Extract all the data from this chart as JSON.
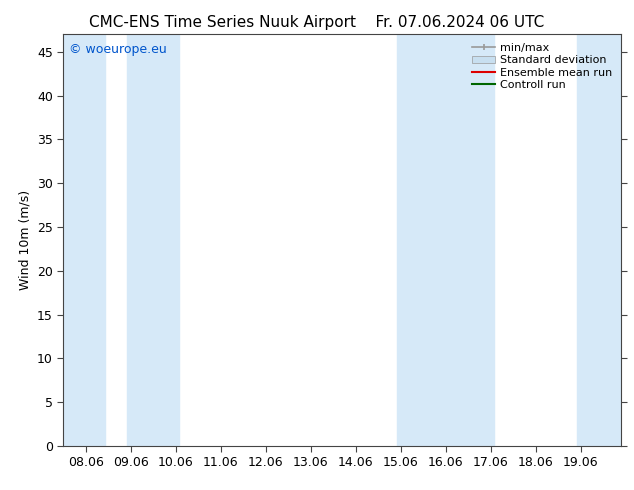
{
  "title_left": "CMC-ENS Time Series Nuuk Airport",
  "title_right": "Fr. 07.06.2024 06 UTC",
  "ylabel": "Wind 10m (m/s)",
  "watermark": "© woeurope.eu",
  "ylim": [
    0,
    47
  ],
  "yticks": [
    0,
    5,
    10,
    15,
    20,
    25,
    30,
    35,
    40,
    45
  ],
  "xtick_labels": [
    "08.06",
    "09.06",
    "10.06",
    "11.06",
    "12.06",
    "13.06",
    "14.06",
    "15.06",
    "16.06",
    "17.06",
    "18.06",
    "19.06"
  ],
  "xtick_positions": [
    0,
    1,
    2,
    3,
    4,
    5,
    6,
    7,
    8,
    9,
    10,
    11
  ],
  "xlim": [
    -0.5,
    11.9
  ],
  "shaded_regions": [
    {
      "xstart": -0.5,
      "xend": 0.42,
      "color": "#d6e9f8"
    },
    {
      "xstart": 0.92,
      "xend": 2.08,
      "color": "#d6e9f8"
    },
    {
      "xstart": 6.92,
      "xend": 9.08,
      "color": "#d6e9f8"
    },
    {
      "xstart": 10.92,
      "xend": 11.9,
      "color": "#d6e9f8"
    }
  ],
  "legend_entries": [
    {
      "label": "min/max",
      "color": "#999999",
      "type": "errorbar"
    },
    {
      "label": "Standard deviation",
      "color": "#c8dff0",
      "type": "fill"
    },
    {
      "label": "Ensemble mean run",
      "color": "#dd0000",
      "type": "line"
    },
    {
      "label": "Controll run",
      "color": "#006600",
      "type": "line"
    }
  ],
  "bg_color": "#ffffff",
  "plot_bg_color": "#ffffff",
  "title_fontsize": 11,
  "axis_fontsize": 9,
  "ylabel_fontsize": 9,
  "watermark_color": "#0055cc",
  "watermark_fontsize": 9,
  "legend_fontsize": 8
}
